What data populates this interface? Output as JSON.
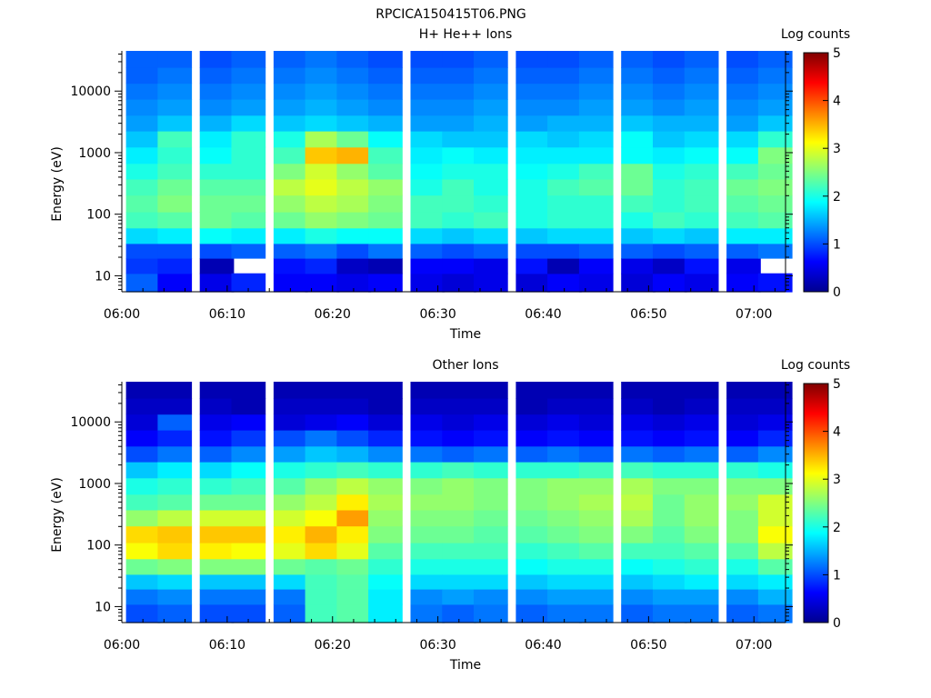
{
  "page_title": "RPCICA150415T06.PNG",
  "colors": {
    "jet_stops": [
      "#00008f",
      "#0000ff",
      "#0080ff",
      "#00ffff",
      "#80ff80",
      "#ffff00",
      "#ff8000",
      "#ff0000",
      "#800000"
    ],
    "background": "#ffffff"
  },
  "chart_data": [
    {
      "type": "heatmap",
      "title": "H+ He++ Ions",
      "xlabel": "Time",
      "ylabel": "Energy (eV)",
      "colorbar_label": "Log counts",
      "colorbar_range": [
        0,
        5
      ],
      "colorbar_ticks": [
        "0",
        "1",
        "2",
        "3",
        "4",
        "5"
      ],
      "x_ticks": [
        "06:00",
        "06:10",
        "06:20",
        "06:30",
        "06:40",
        "06:50",
        "07:00"
      ],
      "x_range_minutes": [
        0,
        63
      ],
      "y_scale": "log",
      "y_ticks": [
        "10",
        "100",
        "1000",
        "10000"
      ],
      "y_range": [
        5.5,
        45000
      ],
      "time_bins": [
        "06:02",
        "06:05",
        "06:09",
        "06:12",
        "06:16",
        "06:19",
        "06:22",
        "06:25",
        "06:29",
        "06:32",
        "06:35",
        "06:39",
        "06:42",
        "06:45",
        "06:49",
        "06:52",
        "06:55",
        "06:59",
        "07:02"
      ],
      "energy_bins": [
        8,
        15,
        25,
        45,
        80,
        150,
        280,
        500,
        900,
        1700,
        3000,
        5500,
        10000,
        18000,
        33000
      ],
      "values": [
        [
          1.1,
          0.6,
          0.5,
          0.8,
          0.6,
          0.6,
          0.5,
          0.6,
          0.5,
          0.4,
          0.5,
          0.4,
          0.6,
          0.5,
          0.4,
          0.6,
          0.5,
          0.6,
          0.7
        ],
        [
          0.9,
          0.8,
          0.2,
          null,
          0.7,
          0.8,
          0.3,
          0.2,
          0.6,
          0.6,
          0.5,
          0.7,
          0.2,
          0.6,
          0.5,
          0.3,
          0.7,
          0.5,
          null
        ],
        [
          1.0,
          1.0,
          1.0,
          1.1,
          1.1,
          1.2,
          1.0,
          1.2,
          1.1,
          1.0,
          1.1,
          1.0,
          1.0,
          1.1,
          1.1,
          1.0,
          1.1,
          1.1,
          1.2
        ],
        [
          1.7,
          1.8,
          1.9,
          1.8,
          1.8,
          2.0,
          1.9,
          1.9,
          1.7,
          1.6,
          1.7,
          1.6,
          1.7,
          1.7,
          1.6,
          1.7,
          1.6,
          1.8,
          1.8
        ],
        [
          2.2,
          2.3,
          2.4,
          2.3,
          2.4,
          2.6,
          2.5,
          2.4,
          2.2,
          2.1,
          2.2,
          2.0,
          2.1,
          2.1,
          2.0,
          2.2,
          2.1,
          2.2,
          2.3
        ],
        [
          2.3,
          2.5,
          2.4,
          2.4,
          2.6,
          2.8,
          2.7,
          2.5,
          2.2,
          2.2,
          2.1,
          2.0,
          2.1,
          2.1,
          2.2,
          2.1,
          2.2,
          2.3,
          2.4
        ],
        [
          2.2,
          2.4,
          2.3,
          2.3,
          2.8,
          3.0,
          2.8,
          2.6,
          2.0,
          2.2,
          2.0,
          2.0,
          2.2,
          2.3,
          2.4,
          2.1,
          2.2,
          2.4,
          2.5
        ],
        [
          2.0,
          2.2,
          2.1,
          2.1,
          2.5,
          2.9,
          2.6,
          2.3,
          1.9,
          2.0,
          2.0,
          1.9,
          2.0,
          2.2,
          2.4,
          2.0,
          2.1,
          2.2,
          2.4
        ],
        [
          1.8,
          2.1,
          1.9,
          2.1,
          2.2,
          3.4,
          3.5,
          2.2,
          1.8,
          1.9,
          1.8,
          1.8,
          1.8,
          1.8,
          1.9,
          1.8,
          1.9,
          1.9,
          2.5
        ],
        [
          1.6,
          2.2,
          1.8,
          2.1,
          2.0,
          2.7,
          2.4,
          1.9,
          1.7,
          1.6,
          1.6,
          1.7,
          1.6,
          1.7,
          1.9,
          1.6,
          1.7,
          1.7,
          2.1
        ],
        [
          1.4,
          1.6,
          1.5,
          1.7,
          1.6,
          1.7,
          1.6,
          1.5,
          1.4,
          1.4,
          1.5,
          1.4,
          1.5,
          1.5,
          1.6,
          1.5,
          1.5,
          1.4,
          1.6
        ],
        [
          1.3,
          1.4,
          1.3,
          1.4,
          1.4,
          1.5,
          1.4,
          1.3,
          1.3,
          1.3,
          1.4,
          1.3,
          1.3,
          1.4,
          1.4,
          1.3,
          1.4,
          1.3,
          1.4
        ],
        [
          1.2,
          1.3,
          1.2,
          1.3,
          1.3,
          1.4,
          1.3,
          1.2,
          1.2,
          1.2,
          1.3,
          1.2,
          1.2,
          1.3,
          1.3,
          1.2,
          1.3,
          1.2,
          1.3
        ],
        [
          1.1,
          1.2,
          1.1,
          1.2,
          1.2,
          1.3,
          1.2,
          1.1,
          1.1,
          1.1,
          1.2,
          1.1,
          1.1,
          1.2,
          1.2,
          1.1,
          1.2,
          1.1,
          1.2
        ],
        [
          1.1,
          1.1,
          1.0,
          1.1,
          1.1,
          1.2,
          1.1,
          1.0,
          1.0,
          1.0,
          1.1,
          1.0,
          1.0,
          1.1,
          1.1,
          1.0,
          1.1,
          1.0,
          1.1
        ]
      ]
    },
    {
      "type": "heatmap",
      "title": "Other Ions",
      "xlabel": "Time",
      "ylabel": "Energy (eV)",
      "colorbar_label": "Log counts",
      "colorbar_range": [
        0,
        5
      ],
      "colorbar_ticks": [
        "0",
        "1",
        "2",
        "3",
        "4",
        "5"
      ],
      "x_ticks": [
        "06:00",
        "06:10",
        "06:20",
        "06:30",
        "06:40",
        "06:50",
        "07:00"
      ],
      "x_range_minutes": [
        0,
        63
      ],
      "y_scale": "log",
      "y_ticks": [
        "10",
        "100",
        "1000",
        "10000"
      ],
      "y_range": [
        5.5,
        45000
      ],
      "time_bins": [
        "06:02",
        "06:05",
        "06:09",
        "06:12",
        "06:16",
        "06:19",
        "06:22",
        "06:25",
        "06:29",
        "06:32",
        "06:35",
        "06:39",
        "06:42",
        "06:45",
        "06:49",
        "06:52",
        "06:55",
        "06:59",
        "07:02"
      ],
      "energy_bins": [
        8,
        15,
        25,
        45,
        80,
        150,
        280,
        500,
        900,
        1700,
        3000,
        5500,
        10000,
        18000,
        33000
      ],
      "values": [
        [
          1.0,
          1.1,
          1.0,
          1.0,
          1.1,
          2.2,
          2.3,
          1.8,
          1.2,
          1.1,
          1.2,
          1.1,
          1.2,
          1.2,
          1.1,
          1.2,
          1.2,
          1.1,
          1.2
        ],
        [
          1.2,
          1.3,
          1.2,
          1.2,
          1.2,
          2.2,
          2.3,
          1.8,
          1.3,
          1.4,
          1.3,
          1.3,
          1.4,
          1.4,
          1.3,
          1.4,
          1.4,
          1.3,
          1.5
        ],
        [
          1.6,
          1.7,
          1.6,
          1.6,
          1.7,
          2.2,
          2.3,
          1.9,
          1.7,
          1.7,
          1.7,
          1.6,
          1.7,
          1.7,
          1.6,
          1.7,
          1.8,
          1.7,
          1.8
        ],
        [
          2.4,
          2.5,
          2.5,
          2.5,
          2.4,
          2.3,
          2.4,
          2.1,
          2.0,
          2.0,
          2.0,
          1.9,
          2.0,
          2.0,
          1.9,
          2.0,
          2.1,
          2.0,
          2.3
        ],
        [
          3.1,
          3.3,
          3.2,
          3.1,
          3.0,
          3.3,
          3.0,
          2.3,
          2.2,
          2.2,
          2.2,
          2.1,
          2.2,
          2.3,
          2.2,
          2.2,
          2.3,
          2.3,
          2.8
        ],
        [
          3.3,
          3.4,
          3.4,
          3.4,
          3.2,
          3.5,
          3.2,
          2.5,
          2.4,
          2.4,
          2.3,
          2.3,
          2.4,
          2.5,
          2.5,
          2.3,
          2.5,
          2.5,
          3.1
        ],
        [
          2.6,
          2.8,
          2.9,
          2.9,
          2.9,
          3.1,
          3.6,
          2.6,
          2.5,
          2.5,
          2.4,
          2.4,
          2.5,
          2.6,
          2.7,
          2.4,
          2.6,
          2.5,
          2.9
        ],
        [
          2.2,
          2.3,
          2.4,
          2.4,
          2.6,
          2.8,
          3.2,
          2.7,
          2.6,
          2.6,
          2.5,
          2.5,
          2.6,
          2.7,
          2.8,
          2.4,
          2.6,
          2.6,
          2.9
        ],
        [
          2.0,
          2.1,
          2.1,
          2.2,
          2.3,
          2.6,
          2.8,
          2.6,
          2.5,
          2.6,
          2.5,
          2.5,
          2.6,
          2.6,
          2.7,
          2.5,
          2.5,
          2.5,
          2.5
        ],
        [
          1.6,
          1.8,
          1.7,
          1.9,
          2.0,
          2.1,
          2.2,
          2.1,
          2.1,
          2.2,
          2.1,
          2.1,
          2.1,
          2.2,
          2.2,
          2.1,
          2.1,
          2.1,
          2.0
        ],
        [
          1.0,
          1.2,
          1.1,
          1.3,
          1.4,
          1.6,
          1.5,
          1.3,
          1.2,
          1.1,
          1.2,
          1.1,
          1.2,
          1.1,
          1.2,
          1.1,
          1.2,
          1.1,
          1.3
        ],
        [
          0.6,
          0.8,
          0.7,
          0.9,
          1.0,
          1.2,
          1.0,
          0.8,
          0.7,
          0.6,
          0.7,
          0.6,
          0.7,
          0.6,
          0.7,
          0.6,
          0.7,
          0.6,
          0.8
        ],
        [
          0.4,
          1.1,
          0.5,
          0.6,
          0.4,
          0.5,
          0.6,
          0.4,
          0.5,
          0.4,
          0.5,
          0.4,
          0.5,
          0.4,
          0.5,
          0.4,
          0.5,
          0.4,
          0.5
        ],
        [
          0.3,
          0.3,
          0.3,
          0.2,
          0.3,
          0.3,
          0.3,
          0.2,
          0.3,
          0.3,
          0.3,
          0.2,
          0.3,
          0.3,
          0.3,
          0.2,
          0.3,
          0.3,
          0.3
        ],
        [
          0.2,
          0.2,
          0.2,
          0.2,
          0.2,
          0.2,
          0.2,
          0.2,
          0.2,
          0.2,
          0.2,
          0.2,
          0.2,
          0.2,
          0.2,
          0.2,
          0.2,
          0.2,
          0.2
        ]
      ]
    }
  ]
}
